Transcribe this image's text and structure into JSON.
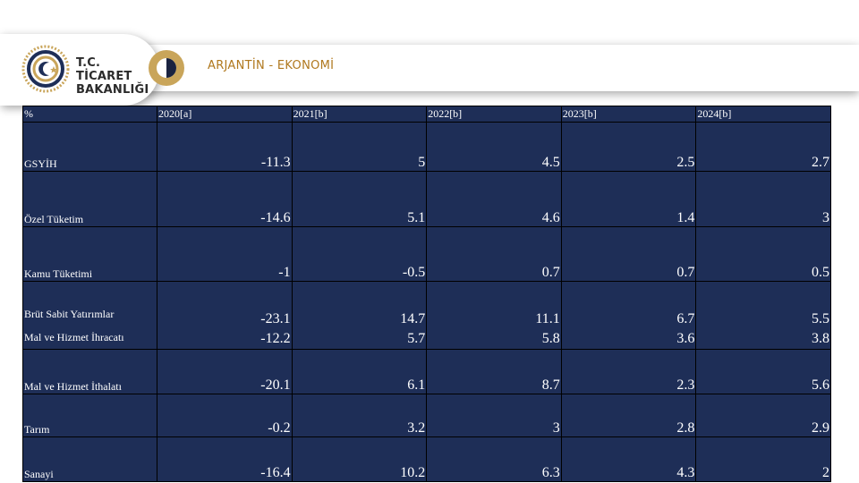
{
  "header": {
    "ministry_line1": "T.C. TİCARET",
    "ministry_line2": "BAKANLIĞI",
    "title": "ARJANTİN - EKONOMİ",
    "brand_gold": "#c9a55a",
    "brand_navy": "#1e2e57"
  },
  "table": {
    "unit": "%",
    "years": [
      "2020[a]",
      "2021[b]",
      "2022[b]",
      "2023[b]",
      "2024[b]"
    ],
    "rows": [
      {
        "label": "GSYİH",
        "values": [
          "-11.3",
          "5",
          "4.5",
          "2.5",
          "2.7"
        ]
      },
      {
        "label": "Özel Tüketim",
        "values": [
          "-14.6",
          "5.1",
          "4.6",
          "1.4",
          "3"
        ]
      },
      {
        "label": "Kamu Tüketimi",
        "values": [
          "-1",
          "-0.5",
          "0.7",
          "0.7",
          "0.5"
        ]
      },
      {
        "label": "Brüt Sabit Yatırımlar",
        "values": [
          "-23.1",
          "14.7",
          "11.1",
          "6.7",
          "5.5"
        ]
      },
      {
        "label": "Mal ve Hizmet İhracatı",
        "values": [
          "-12.2",
          "5.7",
          "5.8",
          "3.6",
          "3.8"
        ]
      },
      {
        "label": "Mal ve Hizmet İthalatı",
        "values": [
          "-20.1",
          "6.1",
          "8.7",
          "2.3",
          "5.6"
        ]
      },
      {
        "label": "Tarım",
        "values": [
          "-0.2",
          "3.2",
          "3",
          "2.8",
          "2.9"
        ]
      },
      {
        "label": "Sanayi",
        "values": [
          "-16.4",
          "10.2",
          "6.3",
          "4.3",
          "2"
        ]
      }
    ]
  }
}
